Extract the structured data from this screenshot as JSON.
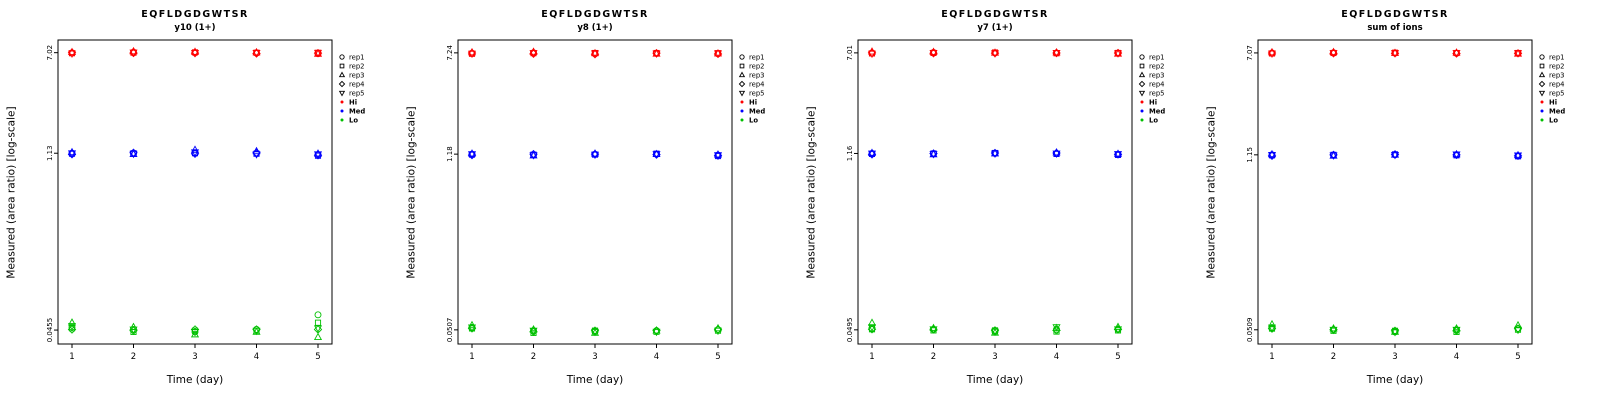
{
  "figure": {
    "background": "#ffffff"
  },
  "legend": {
    "reps": [
      {
        "label": "rep1",
        "marker": "circle"
      },
      {
        "label": "rep2",
        "marker": "square"
      },
      {
        "label": "rep3",
        "marker": "triangle-up"
      },
      {
        "label": "rep4",
        "marker": "diamond"
      },
      {
        "label": "rep5",
        "marker": "triangle-down"
      }
    ],
    "groups": [
      {
        "label": "Hi",
        "color": "#FF0000"
      },
      {
        "label": "Med",
        "color": "#0000FF"
      },
      {
        "label": "Lo",
        "color": "#00C000"
      }
    ]
  },
  "chart_data": [
    {
      "type": "scatter",
      "title": "EQFLDGDGWTSR",
      "subtitle": "y10 (1+)",
      "xlabel": "Time (day)",
      "ylabel": "Measured (area ratio) [log-scale]",
      "x": [
        1,
        2,
        3,
        4,
        5
      ],
      "x_ticks": [
        "1",
        "2",
        "3",
        "4",
        "5"
      ],
      "y_scale": "log10",
      "y_ticks": [
        "7.02",
        "1.13",
        "0.0455"
      ],
      "y_tick_values": [
        7.02,
        1.13,
        0.0455
      ],
      "series": [
        {
          "name": "Hi",
          "color": "#FF0000",
          "days": [
            [
              7.0,
              6.95,
              7.08,
              7.02,
              6.92
            ],
            [
              7.1,
              7.02,
              7.18,
              6.98,
              7.04
            ],
            [
              7.02,
              7.06,
              7.12,
              6.96,
              7.0
            ],
            [
              6.97,
              7.02,
              7.06,
              6.92,
              7.0
            ],
            [
              6.9,
              7.0,
              6.86,
              6.96,
              7.02
            ]
          ]
        },
        {
          "name": "Med",
          "color": "#0000FF",
          "days": [
            [
              1.13,
              1.12,
              1.15,
              1.11,
              1.13
            ],
            [
              1.12,
              1.13,
              1.11,
              1.14,
              1.12
            ],
            [
              1.14,
              1.13,
              1.2,
              1.12,
              1.15
            ],
            [
              1.13,
              1.12,
              1.17,
              1.14,
              1.11
            ],
            [
              1.1,
              1.08,
              1.12,
              1.09,
              1.11
            ]
          ]
        },
        {
          "name": "Lo",
          "color": "#00C000",
          "days": [
            [
              0.048,
              0.047,
              0.052,
              0.046,
              0.049
            ],
            [
              0.046,
              0.044,
              0.048,
              0.045,
              0.046
            ],
            [
              0.044,
              0.045,
              0.042,
              0.046,
              0.044
            ],
            [
              0.046,
              0.045,
              0.044,
              0.046,
              0.045
            ],
            [
              0.06,
              0.052,
              0.04,
              0.046,
              0.047
            ]
          ]
        }
      ]
    },
    {
      "type": "scatter",
      "title": "EQFLDGDGWTSR",
      "subtitle": "y8 (1+)",
      "xlabel": "Time (day)",
      "ylabel": "Measured (area ratio) [log-scale]",
      "x": [
        1,
        2,
        3,
        4,
        5
      ],
      "x_ticks": [
        "1",
        "2",
        "3",
        "4",
        "5"
      ],
      "y_scale": "log10",
      "y_ticks": [
        "7.24",
        "1.18",
        "0.0507"
      ],
      "y_tick_values": [
        7.24,
        1.18,
        0.0507
      ],
      "series": [
        {
          "name": "Hi",
          "color": "#FF0000",
          "days": [
            [
              7.2,
              7.12,
              7.3,
              7.22,
              7.15
            ],
            [
              7.26,
              7.2,
              7.36,
              7.12,
              7.22
            ],
            [
              7.12,
              7.22,
              7.18,
              7.06,
              7.2
            ],
            [
              7.16,
              7.22,
              7.12,
              7.2,
              7.16
            ],
            [
              7.12,
              7.2,
              7.16,
              7.1,
              7.2
            ]
          ]
        },
        {
          "name": "Med",
          "color": "#0000FF",
          "days": [
            [
              1.18,
              1.17,
              1.19,
              1.16,
              1.18
            ],
            [
              1.16,
              1.17,
              1.15,
              1.18,
              1.16
            ],
            [
              1.18,
              1.17,
              1.19,
              1.18,
              1.17
            ],
            [
              1.18,
              1.19,
              1.18,
              1.17,
              1.18
            ],
            [
              1.16,
              1.14,
              1.17,
              1.15,
              1.16
            ]
          ]
        },
        {
          "name": "Lo",
          "color": "#00C000",
          "days": [
            [
              0.053,
              0.052,
              0.055,
              0.052,
              0.053
            ],
            [
              0.05,
              0.048,
              0.051,
              0.049,
              0.05
            ],
            [
              0.049,
              0.05,
              0.048,
              0.05,
              0.049
            ],
            [
              0.05,
              0.049,
              0.05,
              0.05,
              0.049
            ],
            [
              0.051,
              0.05,
              0.052,
              0.051,
              0.05
            ]
          ]
        }
      ]
    },
    {
      "type": "scatter",
      "title": "EQFLDGDGWTSR",
      "subtitle": "y7 (1+)",
      "xlabel": "Time (day)",
      "ylabel": "Measured (area ratio) [log-scale]",
      "x": [
        1,
        2,
        3,
        4,
        5
      ],
      "x_ticks": [
        "1",
        "2",
        "3",
        "4",
        "5"
      ],
      "y_scale": "log10",
      "y_ticks": [
        "7.01",
        "1.16",
        "0.0495"
      ],
      "y_tick_values": [
        7.01,
        1.16,
        0.0495
      ],
      "series": [
        {
          "name": "Hi",
          "color": "#FF0000",
          "days": [
            [
              7.0,
              6.94,
              7.16,
              7.02,
              6.92
            ],
            [
              7.06,
              7.0,
              7.12,
              6.96,
              7.02
            ],
            [
              7.0,
              7.06,
              7.02,
              6.98,
              6.96
            ],
            [
              7.0,
              6.96,
              7.06,
              7.0,
              7.02
            ],
            [
              6.96,
              7.0,
              6.9,
              7.0,
              6.96
            ]
          ]
        },
        {
          "name": "Med",
          "color": "#0000FF",
          "days": [
            [
              1.16,
              1.15,
              1.17,
              1.14,
              1.16
            ],
            [
              1.15,
              1.16,
              1.14,
              1.16,
              1.15
            ],
            [
              1.16,
              1.17,
              1.16,
              1.17,
              1.16
            ],
            [
              1.16,
              1.15,
              1.18,
              1.17,
              1.16
            ],
            [
              1.14,
              1.13,
              1.15,
              1.14,
              1.15
            ]
          ]
        },
        {
          "name": "Lo",
          "color": "#00C000",
          "days": [
            [
              0.051,
              0.05,
              0.056,
              0.05,
              0.052
            ],
            [
              0.05,
              0.049,
              0.051,
              0.05,
              0.05
            ],
            [
              0.048,
              0.049,
              0.047,
              0.049,
              0.048
            ],
            [
              0.05,
              0.048,
              0.051,
              0.049,
              0.052
            ],
            [
              0.05,
              0.049,
              0.052,
              0.05,
              0.05
            ]
          ]
        }
      ]
    },
    {
      "type": "scatter",
      "title": "EQFLDGDGWTSR",
      "subtitle": "sum of ions",
      "xlabel": "Time (day)",
      "ylabel": "Measured (area ratio) [log-scale]",
      "x": [
        1,
        2,
        3,
        4,
        5
      ],
      "x_ticks": [
        "1",
        "2",
        "3",
        "4",
        "5"
      ],
      "y_scale": "log10",
      "y_ticks": [
        "7.07",
        "1.15",
        "0.0509"
      ],
      "y_tick_values": [
        7.07,
        1.15,
        0.0509
      ],
      "series": [
        {
          "name": "Hi",
          "color": "#FF0000",
          "days": [
            [
              7.06,
              7.0,
              7.14,
              7.06,
              7.0
            ],
            [
              7.1,
              7.06,
              7.16,
              7.02,
              7.06
            ],
            [
              7.06,
              7.1,
              7.06,
              7.02,
              7.06
            ],
            [
              7.02,
              7.06,
              7.1,
              7.0,
              7.06
            ],
            [
              7.02,
              7.06,
              6.96,
              7.02,
              7.06
            ]
          ]
        },
        {
          "name": "Med",
          "color": "#0000FF",
          "days": [
            [
              1.15,
              1.14,
              1.16,
              1.13,
              1.15
            ],
            [
              1.14,
              1.15,
              1.13,
              1.15,
              1.14
            ],
            [
              1.15,
              1.16,
              1.15,
              1.16,
              1.15
            ],
            [
              1.15,
              1.14,
              1.16,
              1.15,
              1.16
            ],
            [
              1.13,
              1.12,
              1.14,
              1.13,
              1.14
            ]
          ]
        },
        {
          "name": "Lo",
          "color": "#00C000",
          "days": [
            [
              0.053,
              0.052,
              0.056,
              0.052,
              0.053
            ],
            [
              0.051,
              0.05,
              0.052,
              0.051,
              0.051
            ],
            [
              0.049,
              0.05,
              0.049,
              0.05,
              0.049
            ],
            [
              0.051,
              0.049,
              0.052,
              0.05,
              0.051
            ],
            [
              0.052,
              0.051,
              0.055,
              0.052,
              0.051
            ]
          ]
        }
      ]
    }
  ]
}
